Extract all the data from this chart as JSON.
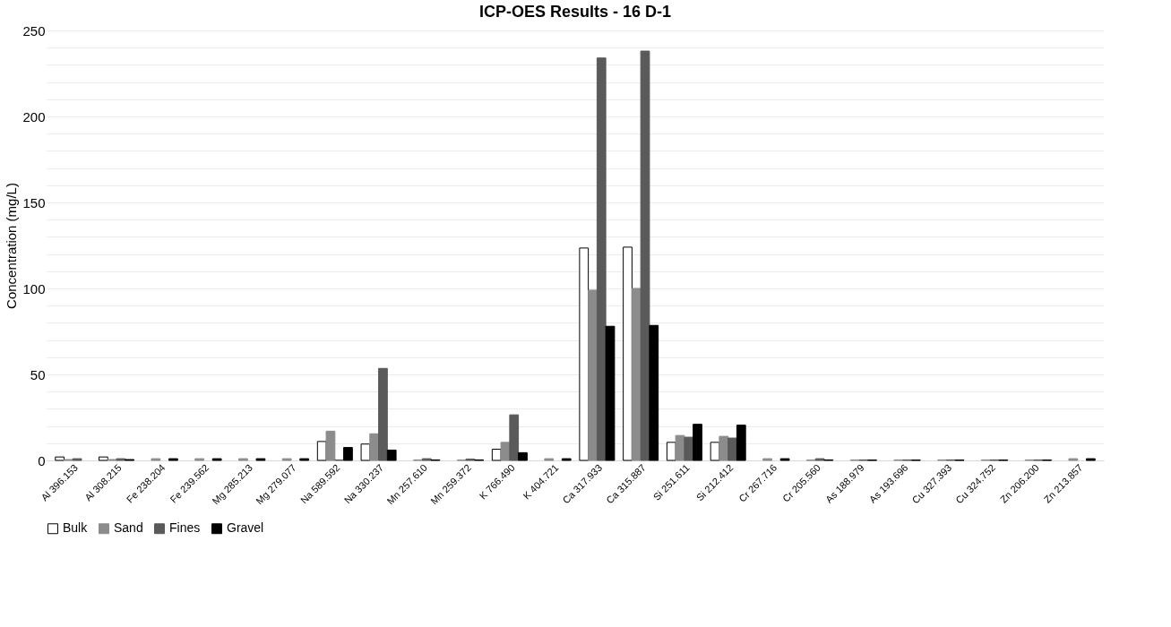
{
  "chart_data": {
    "type": "bar",
    "title": "ICP-OES Results - 16 D-1",
    "ylabel": "Concentration (mg/L)",
    "categories": [
      "Al 396.153",
      "Al 308.215",
      "Fe 238.204",
      "Fe 239.562",
      "Mg 285.213",
      "Mg 279.077",
      "Na 589.592",
      "Na 330.237",
      "Mn 257.610",
      "Mn 259.372",
      "K 766.490",
      "K 404.721",
      "Ca 317.933",
      "Ca 315.887",
      "Si 251.611",
      "Si 212.412",
      "Cr 267.716",
      "Cr 205.560",
      "As 188.979",
      "As 193.696",
      "Cu 327.393",
      "Cu 324.752",
      "Zn 206.200",
      "Zn 213.857"
    ],
    "series": [
      {
        "name": "Bulk",
        "color": "#ffffff",
        "values": [
          2,
          2,
          null,
          null,
          null,
          null,
          11,
          9.5,
          null,
          null,
          6.5,
          null,
          123.5,
          124,
          10.5,
          10.5,
          null,
          null,
          null,
          null,
          null,
          null,
          null,
          null
        ]
      },
      {
        "name": "Sand",
        "color": "#8c8c8c",
        "values": [
          0.5,
          0.5,
          1,
          1,
          1,
          1,
          17,
          15.5,
          0.3,
          0.2,
          10.5,
          1,
          99,
          100,
          14.5,
          14,
          1,
          0.2,
          0.3,
          0.3,
          0.3,
          0.3,
          0.3,
          1
        ]
      },
      {
        "name": "Fines",
        "color": "#5a5a5a",
        "values": [
          1,
          1,
          null,
          null,
          null,
          null,
          0.3,
          53.5,
          1,
          0.8,
          26.5,
          null,
          234,
          238,
          13.5,
          13,
          null,
          1,
          0.3,
          0.3,
          0.3,
          0.3,
          0.3,
          null
        ]
      },
      {
        "name": "Gravel",
        "color": "#000000",
        "values": [
          null,
          0.5,
          1,
          1,
          1,
          1,
          7.5,
          6,
          0.3,
          0.3,
          4.5,
          1,
          78,
          78.5,
          21,
          20.5,
          1,
          0.3,
          0.2,
          0.2,
          0.2,
          0.2,
          0.2,
          1
        ]
      }
    ],
    "ylim": [
      0,
      250
    ],
    "yticks": [
      0,
      {
        "value": 10,
        "label": null
      },
      {
        "value": 20,
        "label": null
      },
      {
        "value": 30,
        "label": null
      },
      {
        "value": 40,
        "label": null
      },
      50,
      {
        "value": 60,
        "label": null
      },
      {
        "value": 70,
        "label": null
      },
      {
        "value": 80,
        "label": null
      },
      {
        "value": 90,
        "label": null
      },
      100,
      {
        "value": 110,
        "label": null
      },
      {
        "value": 120,
        "label": null
      },
      {
        "value": 130,
        "label": null
      },
      {
        "value": 140,
        "label": null
      },
      150,
      {
        "value": 160,
        "label": null
      },
      {
        "value": 170,
        "label": null
      },
      {
        "value": 180,
        "label": null
      },
      {
        "value": 190,
        "label": null
      },
      200,
      {
        "value": 210,
        "label": null
      },
      {
        "value": 220,
        "label": null
      },
      {
        "value": 230,
        "label": null
      },
      {
        "value": 240,
        "label": null
      },
      250
    ],
    "grid": "y",
    "legend": "bottom"
  }
}
